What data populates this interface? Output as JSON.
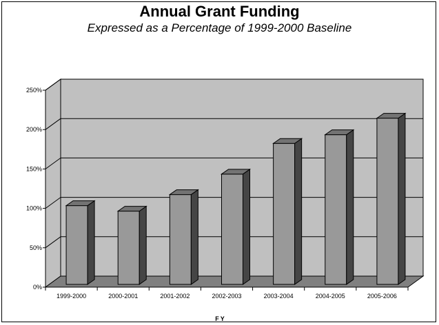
{
  "chart_data": {
    "type": "bar",
    "title": "Annual Grant Funding",
    "subtitle": "Expressed as a Percentage of 1999-2000 Baseline",
    "xlabel": "FY",
    "ylabel": "",
    "categories": [
      "1999-2000",
      "2000-2001",
      "2001-2002",
      "2002-2003",
      "2003-2004",
      "2004-2005",
      "2005-2006"
    ],
    "values": [
      100,
      93,
      114,
      140,
      179,
      190,
      211
    ],
    "ylim": [
      0,
      250
    ],
    "yticks": [
      0,
      50,
      100,
      150,
      200,
      250
    ],
    "ytick_labels": [
      "0%",
      "50%",
      "100%",
      "150%",
      "200%",
      "250%"
    ],
    "grid": true,
    "legend": "none",
    "bar_color": "#999999",
    "wall_color": "#c0c0c0",
    "floor_color": "#808080"
  }
}
